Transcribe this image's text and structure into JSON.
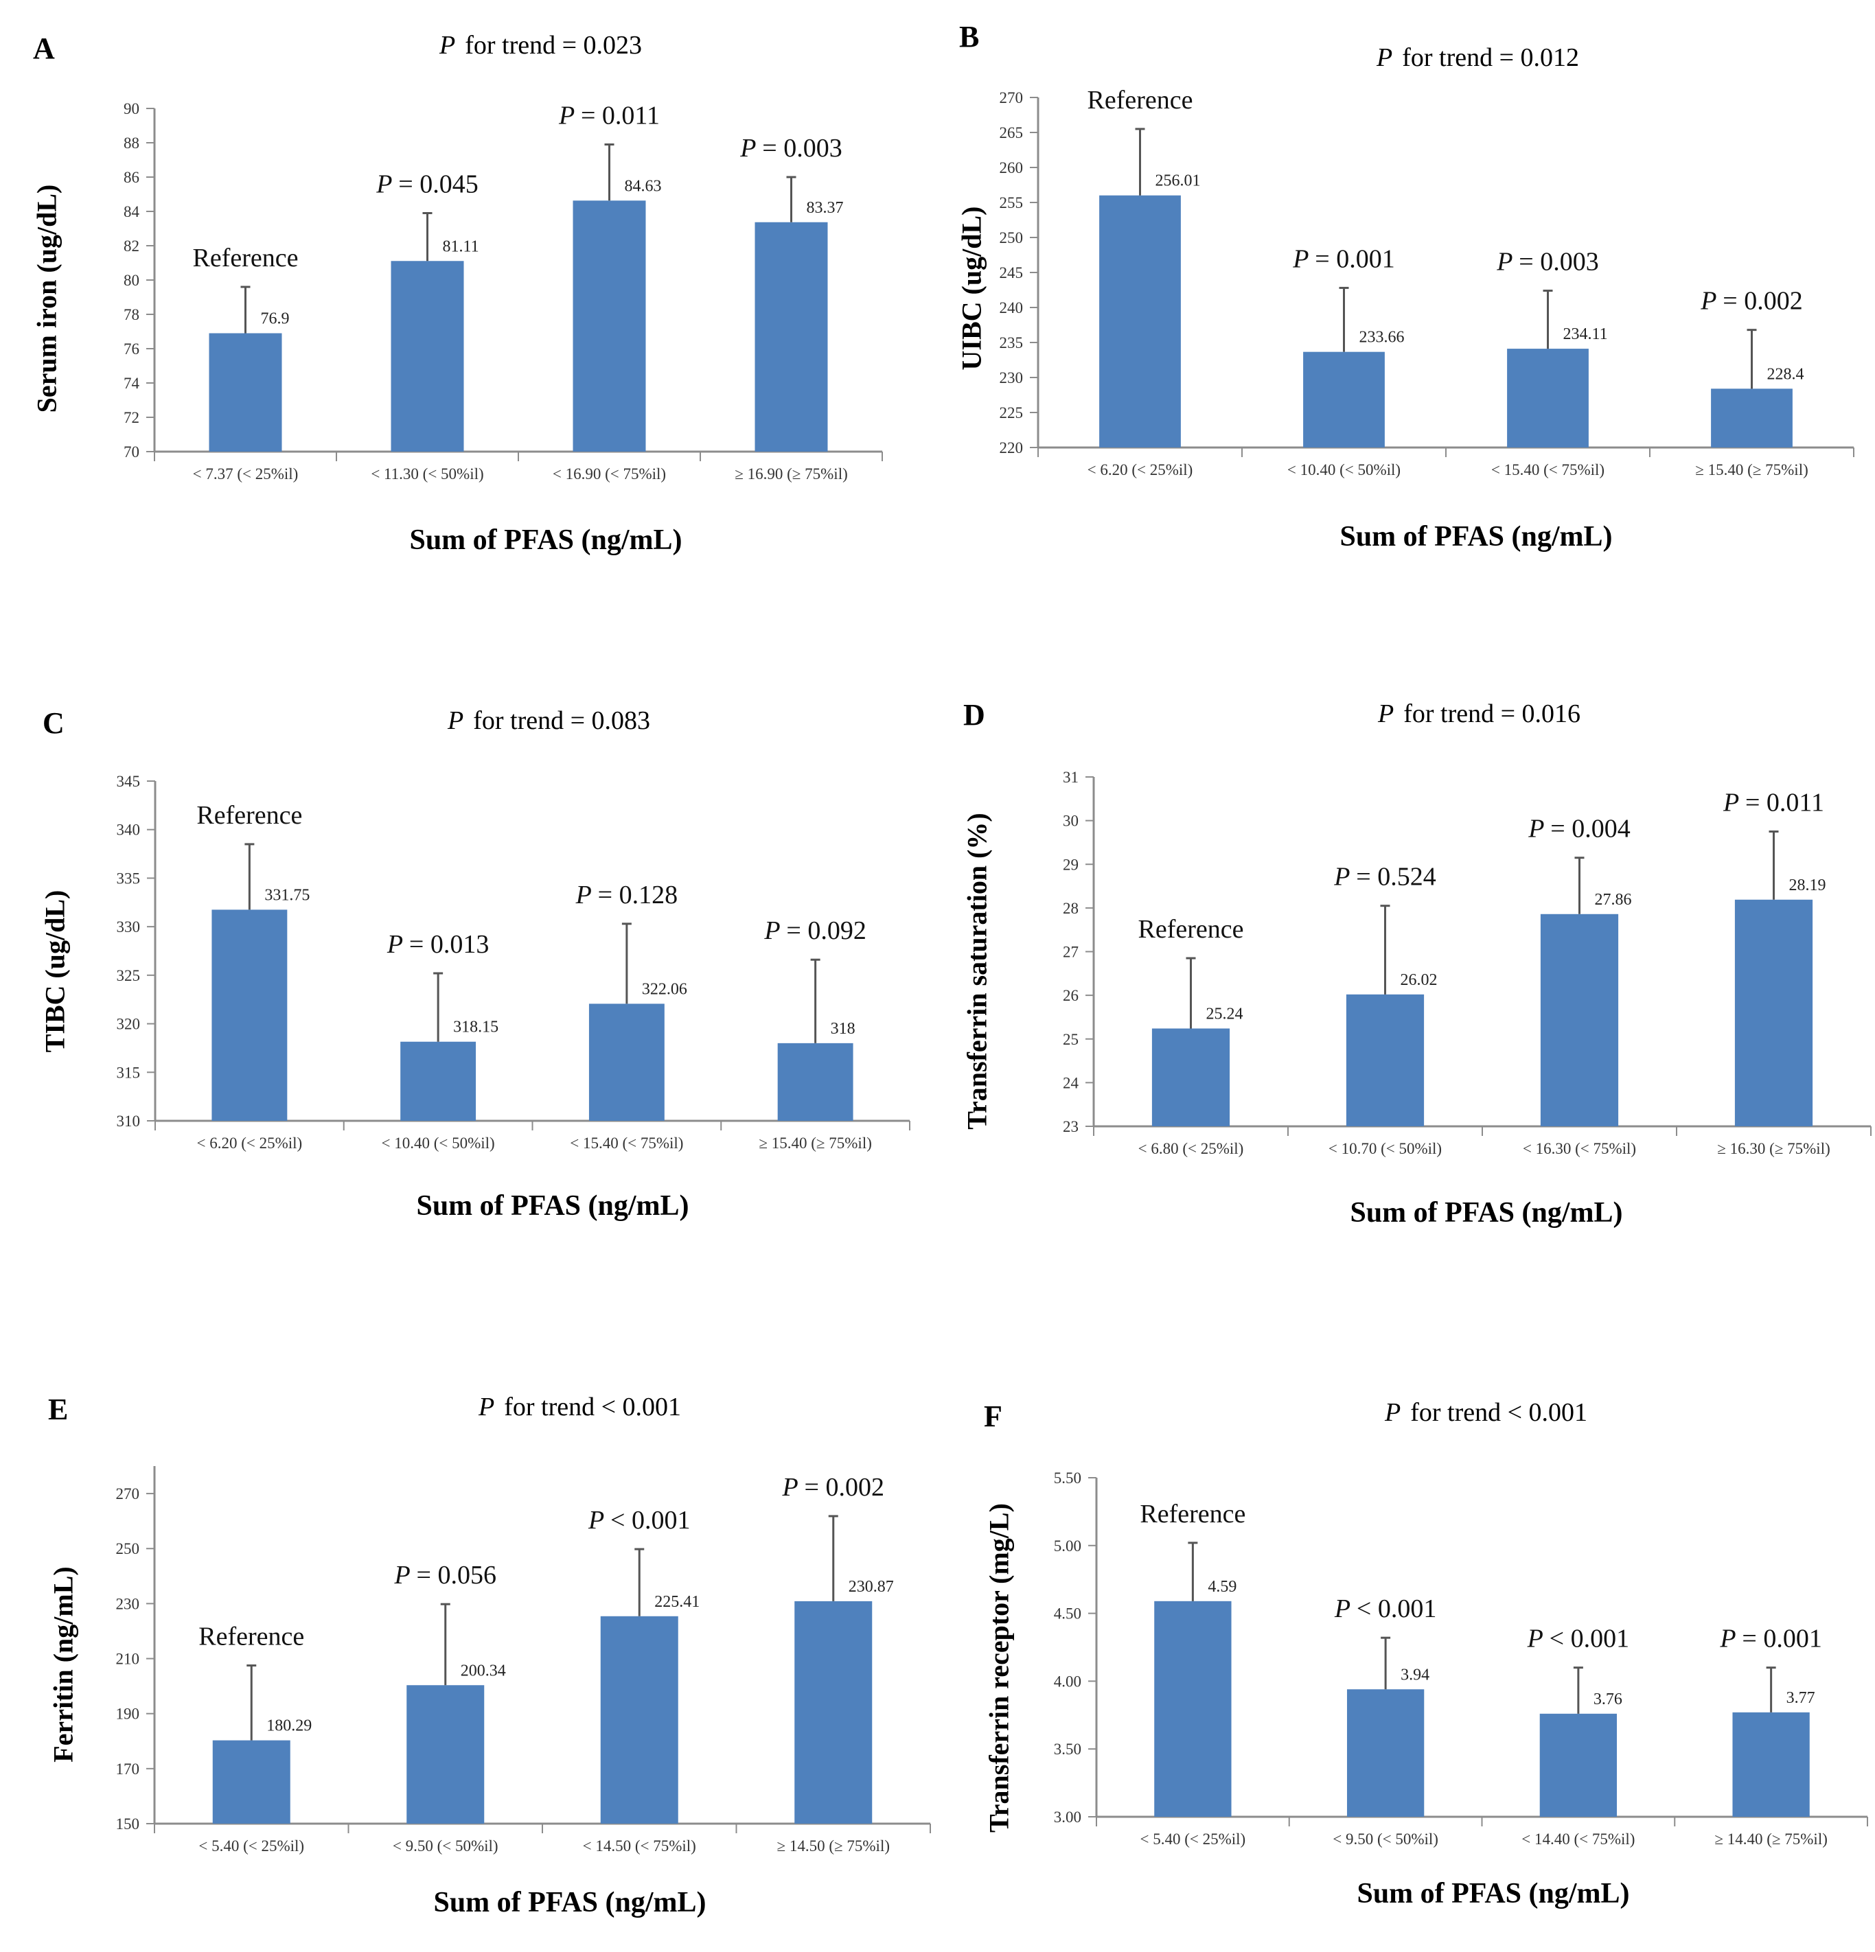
{
  "chart_data": [
    {
      "type": "bar",
      "panel": "A",
      "title": "for trend = 0.023",
      "title_prefix": "P",
      "ylabel": "Serum iron (ug/dL)",
      "xlabel": "Sum of PFAS (ng/mL)",
      "ylim": [
        70,
        90
      ],
      "yticks": [
        70,
        72,
        74,
        76,
        78,
        80,
        82,
        84,
        86,
        88,
        90
      ],
      "tick_decimals": 0,
      "categories": [
        "< 7.37 (< 25%il)",
        "< 11.30 (< 50%il)",
        "< 16.90 (< 75%il)",
        "≥ 16.90 (≥ 75%il)"
      ],
      "values": [
        76.9,
        81.11,
        84.63,
        83.37
      ],
      "value_labels": [
        "76.9",
        "81.11",
        "84.63",
        "83.37"
      ],
      "error_upper": [
        79.6,
        83.9,
        87.9,
        86.0
      ],
      "annotations": [
        {
          "p": "",
          "text": "Reference"
        },
        {
          "p": "P",
          "text": "= 0.045"
        },
        {
          "p": "P",
          "text": "= 0.011"
        },
        {
          "p": "P",
          "text": "= 0.003"
        }
      ]
    },
    {
      "type": "bar",
      "panel": "B",
      "title": "for trend = 0.012",
      "title_prefix": "P",
      "ylabel": "UIBC (ug/dL)",
      "xlabel": "Sum of PFAS (ng/mL)",
      "ylim": [
        220,
        270
      ],
      "yticks": [
        220,
        225,
        230,
        235,
        240,
        245,
        250,
        255,
        260,
        265,
        270
      ],
      "tick_decimals": 0,
      "categories": [
        "< 6.20 (< 25%il)",
        "< 10.40 (< 50%il)",
        "< 15.40 (< 75%il)",
        "≥ 15.40 (≥ 75%il)"
      ],
      "values": [
        256.01,
        233.66,
        234.11,
        228.4
      ],
      "value_labels": [
        "256.01",
        "233.66",
        "234.11",
        "228.4"
      ],
      "error_upper": [
        265.5,
        242.8,
        242.4,
        236.8
      ],
      "annotations": [
        {
          "p": "",
          "text": "Reference"
        },
        {
          "p": "P",
          "text": "= 0.001"
        },
        {
          "p": "P",
          "text": "= 0.003"
        },
        {
          "p": "P",
          "text": "= 0.002"
        }
      ]
    },
    {
      "type": "bar",
      "panel": "C",
      "title": "for trend = 0.083",
      "title_prefix": "P",
      "ylabel": "TIBC (ug/dL)",
      "xlabel": "Sum of PFAS (ng/mL)",
      "ylim": [
        310,
        345
      ],
      "yticks": [
        310,
        315,
        320,
        325,
        330,
        335,
        340,
        345
      ],
      "tick_decimals": 0,
      "categories": [
        "< 6.20 (< 25%il)",
        "< 10.40 (< 50%il)",
        "< 15.40 (< 75%il)",
        "≥ 15.40 (≥ 75%il)"
      ],
      "values": [
        331.75,
        318.15,
        322.06,
        318
      ],
      "value_labels": [
        "331.75",
        "318.15",
        "322.06",
        "318"
      ],
      "error_upper": [
        338.5,
        325.2,
        330.3,
        326.6
      ],
      "annotations": [
        {
          "p": "",
          "text": "Reference"
        },
        {
          "p": "P",
          "text": "= 0.013"
        },
        {
          "p": "P",
          "text": "= 0.128"
        },
        {
          "p": "P",
          "text": "= 0.092"
        }
      ]
    },
    {
      "type": "bar",
      "panel": "D",
      "title": "for trend = 0.016",
      "title_prefix": "P",
      "ylabel": "Transferrin saturation (%)",
      "xlabel": "Sum of PFAS (ng/mL)",
      "ylim": [
        23,
        31
      ],
      "yticks": [
        23,
        24,
        25,
        26,
        27,
        28,
        29,
        30,
        31
      ],
      "tick_decimals": 0,
      "categories": [
        "< 6.80 (< 25%il)",
        "< 10.70 (< 50%il)",
        "< 16.30 (< 75%il)",
        "≥ 16.30 (≥ 75%il)"
      ],
      "values": [
        25.24,
        26.02,
        27.86,
        28.19
      ],
      "value_labels": [
        "25.24",
        "26.02",
        "27.86",
        "28.19"
      ],
      "error_upper": [
        26.85,
        28.05,
        29.15,
        29.75
      ],
      "annotations": [
        {
          "p": "",
          "text": "Reference"
        },
        {
          "p": "P",
          "text": "= 0.524"
        },
        {
          "p": "P",
          "text": "= 0.004"
        },
        {
          "p": "P",
          "text": "= 0.011"
        }
      ]
    },
    {
      "type": "bar",
      "panel": "E",
      "title": "for trend < 0.001",
      "title_prefix": "P",
      "ylabel": "Ferritin (ng/mL)",
      "xlabel": "Sum of PFAS (ng/mL)",
      "ylim": [
        150,
        280
      ],
      "yticks": [
        150,
        170,
        190,
        210,
        230,
        250,
        270
      ],
      "tick_decimals": 0,
      "categories": [
        "< 5.40 (< 25%il)",
        "< 9.50 (< 50%il)",
        "< 14.50 (< 75%il)",
        "≥ 14.50 (≥ 75%il)"
      ],
      "values": [
        180.29,
        200.34,
        225.41,
        230.87
      ],
      "value_labels": [
        "180.29",
        "200.34",
        "225.41",
        "230.87"
      ],
      "error_upper": [
        207.5,
        229.8,
        249.8,
        261.8
      ],
      "annotations": [
        {
          "p": "",
          "text": "Reference"
        },
        {
          "p": "P",
          "text": "= 0.056"
        },
        {
          "p": "P",
          "text": "< 0.001"
        },
        {
          "p": "P",
          "text": "= 0.002"
        }
      ]
    },
    {
      "type": "bar",
      "panel": "F",
      "title": "for trend < 0.001",
      "title_prefix": "P",
      "ylabel": "Transferrin receptor (mg/L)",
      "xlabel": "Sum of PFAS (ng/mL)",
      "ylim": [
        3.0,
        5.5
      ],
      "yticks": [
        3.0,
        3.5,
        4.0,
        4.5,
        5.0,
        5.5
      ],
      "tick_decimals": 2,
      "categories": [
        "< 5.40 (< 25%il)",
        "< 9.50 (< 50%il)",
        "< 14.40 (< 75%il)",
        "≥ 14.40 (≥ 75%il)"
      ],
      "values": [
        4.59,
        3.94,
        3.76,
        3.77
      ],
      "value_labels": [
        "4.59",
        "3.94",
        "3.76",
        "3.77"
      ],
      "error_upper": [
        5.02,
        4.32,
        4.1,
        4.1
      ],
      "annotations": [
        {
          "p": "",
          "text": "Reference"
        },
        {
          "p": "P",
          "text": "< 0.001"
        },
        {
          "p": "P",
          "text": "< 0.001"
        },
        {
          "p": "P",
          "text": "= 0.001"
        }
      ]
    }
  ],
  "colors": {
    "bar": "#4f81bd",
    "axis": "#8c8c8c",
    "error": "#555555"
  }
}
